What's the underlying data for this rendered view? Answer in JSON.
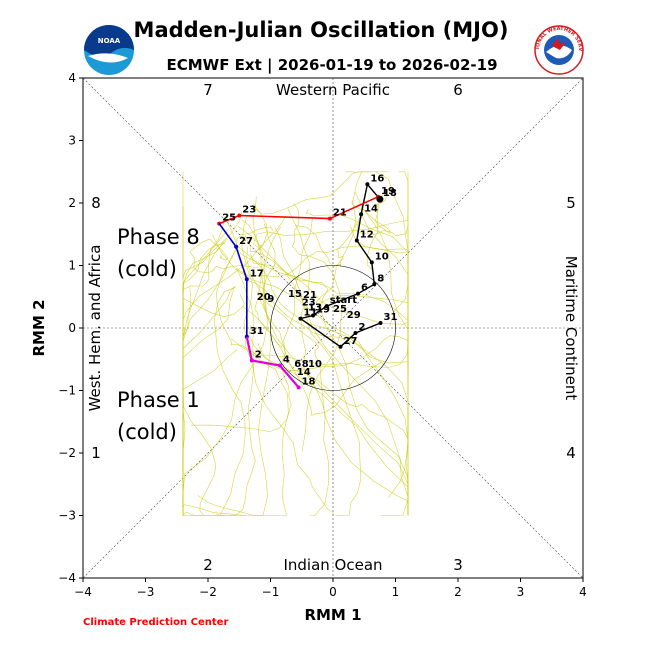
{
  "title": "Madden-Julian Oscillation (MJO)",
  "subtitle": "ECMWF Ext | 2026-01-19 to 2026-02-19",
  "footer": "Climate Prediction Center",
  "logos": {
    "left": "NOAA",
    "right": "NATIONAL WEATHER SERVICE"
  },
  "colors": {
    "ensemble": "#c8c800",
    "observed": "#000000",
    "forecast_a": "#ff0000",
    "forecast_b": "#0000cc",
    "forecast_c": "#dd00dd",
    "footer": "#ff0000"
  },
  "chart_data": {
    "type": "line",
    "xlabel": "RMM 1",
    "ylabel": "RMM 2",
    "xlim": [
      -4,
      4
    ],
    "ylim": [
      -4,
      4
    ],
    "xticks": [
      "−4",
      "−3",
      "−2",
      "−1",
      "0",
      "1",
      "2",
      "3",
      "4"
    ],
    "yticks": [
      "−4",
      "−3",
      "−2",
      "−1",
      "0",
      "1",
      "2",
      "3",
      "4"
    ],
    "unit_circle_radius": 1,
    "regions": {
      "top": "Western Pacific",
      "bottom": "Indian Ocean",
      "left": "West. Hem. and Africa",
      "right": "Maritime Continent"
    },
    "phase_numbers": [
      "1",
      "2",
      "3",
      "4",
      "5",
      "6",
      "7",
      "8"
    ],
    "annotations": [
      "Phase 8",
      "(cold)",
      "Phase 1",
      "(cold)"
    ],
    "series": [
      {
        "name": "observed",
        "points": [
          {
            "x": 0.76,
            "y": 0.08,
            "label": "31"
          },
          {
            "x": 0.36,
            "y": -0.08,
            "label": "2"
          },
          {
            "x": 0.12,
            "y": -0.3,
            "label": "27"
          },
          {
            "x": -0.52,
            "y": 0.15,
            "label": "11"
          },
          {
            "x": -0.32,
            "y": 0.2,
            "label": "19"
          },
          {
            "x": -0.1,
            "y": 0.35,
            "label": "start"
          },
          {
            "x": 0.4,
            "y": 0.55,
            "label": "6"
          },
          {
            "x": 0.66,
            "y": 0.7,
            "label": "8"
          },
          {
            "x": 0.62,
            "y": 1.05,
            "label": "10"
          },
          {
            "x": 0.38,
            "y": 1.4,
            "label": "12"
          },
          {
            "x": 0.45,
            "y": 1.82,
            "label": "14"
          },
          {
            "x": 0.55,
            "y": 2.3,
            "label": "16"
          },
          {
            "x": 0.75,
            "y": 2.06,
            "label": "18"
          }
        ]
      },
      {
        "name": "forecast_a",
        "points": [
          {
            "x": 0.72,
            "y": 2.1,
            "label": "19"
          },
          {
            "x": -0.05,
            "y": 1.75,
            "label": "21"
          },
          {
            "x": -1.5,
            "y": 1.8,
            "label": "23"
          },
          {
            "x": -1.82,
            "y": 1.67,
            "label": "25"
          }
        ]
      },
      {
        "name": "forecast_b",
        "points": [
          {
            "x": -1.55,
            "y": 1.3,
            "label": "27"
          },
          {
            "x": -1.38,
            "y": 0.78,
            "label": "17"
          },
          {
            "x": -1.38,
            "y": -0.14,
            "label": "31"
          }
        ]
      },
      {
        "name": "forecast_c",
        "points": [
          {
            "x": -1.3,
            "y": -0.52,
            "label": "2"
          },
          {
            "x": -0.85,
            "y": -0.6,
            "label": "4"
          },
          {
            "x": -0.55,
            "y": -0.95,
            "label": "18"
          }
        ]
      }
    ],
    "extra_labels": [
      {
        "x": -1.22,
        "y": 0.45,
        "text": "20"
      },
      {
        "x": -1.05,
        "y": 0.42,
        "text": "9"
      },
      {
        "x": -0.72,
        "y": 0.5,
        "text": "15"
      },
      {
        "x": -0.48,
        "y": 0.48,
        "text": "21"
      },
      {
        "x": -0.5,
        "y": 0.36,
        "text": "23"
      },
      {
        "x": -0.4,
        "y": 0.28,
        "text": "13"
      },
      {
        "x": 0.0,
        "y": 0.26,
        "text": "25"
      },
      {
        "x": 0.22,
        "y": 0.16,
        "text": "29"
      },
      {
        "x": -0.62,
        "y": -0.62,
        "text": "6"
      },
      {
        "x": -0.5,
        "y": -0.62,
        "text": "8"
      },
      {
        "x": -0.4,
        "y": -0.62,
        "text": "10"
      },
      {
        "x": -0.58,
        "y": -0.75,
        "text": "14"
      }
    ]
  }
}
